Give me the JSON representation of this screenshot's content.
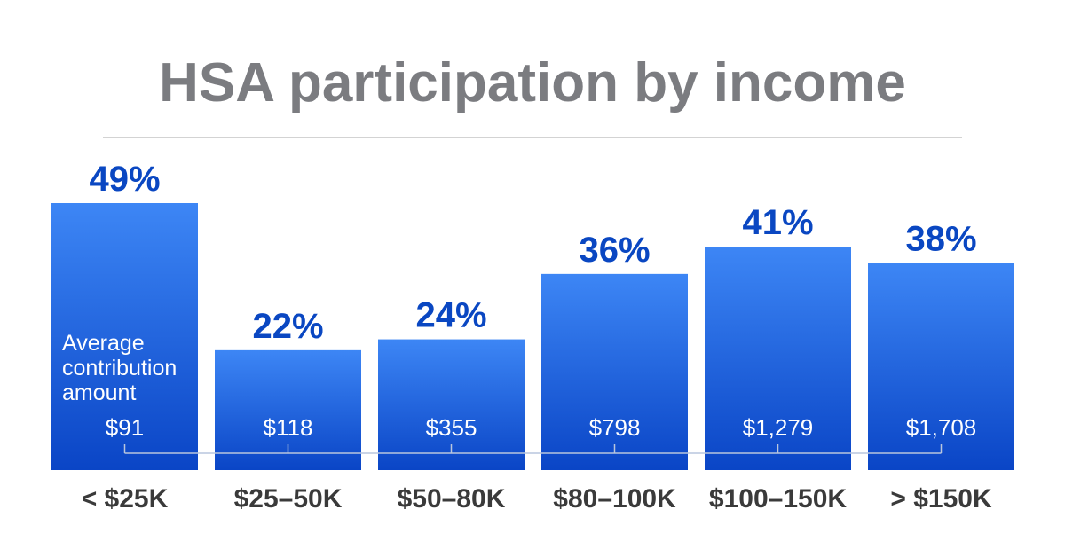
{
  "title": "HSA participation by income",
  "colors": {
    "bar_top": "#3d86f5",
    "bar_bottom": "#0a45c6",
    "value_label": "#0a47c2",
    "title": "#7b7c80"
  },
  "chart_data": {
    "type": "bar",
    "title": "HSA participation by income",
    "categories": [
      "< $25K",
      "$25–50K",
      "$50–80K",
      "$80–100K",
      "$100–150K",
      "> $150K"
    ],
    "values": [
      49,
      22,
      24,
      36,
      41,
      38
    ],
    "value_labels": [
      "49%",
      "22%",
      "24%",
      "36%",
      "41%",
      "38%"
    ],
    "secondary_label": "Average contribution amount",
    "secondary_label_lines": [
      "Average",
      "contribution",
      "amount"
    ],
    "secondary_values": [
      91,
      118,
      355,
      798,
      1279,
      1708
    ],
    "secondary_value_labels": [
      "$91",
      "$118",
      "$355",
      "$798",
      "$1,279",
      "$1,708"
    ],
    "xlabel": "",
    "ylabel": "",
    "ylim": [
      0,
      49
    ],
    "grid": false,
    "legend": "none"
  }
}
